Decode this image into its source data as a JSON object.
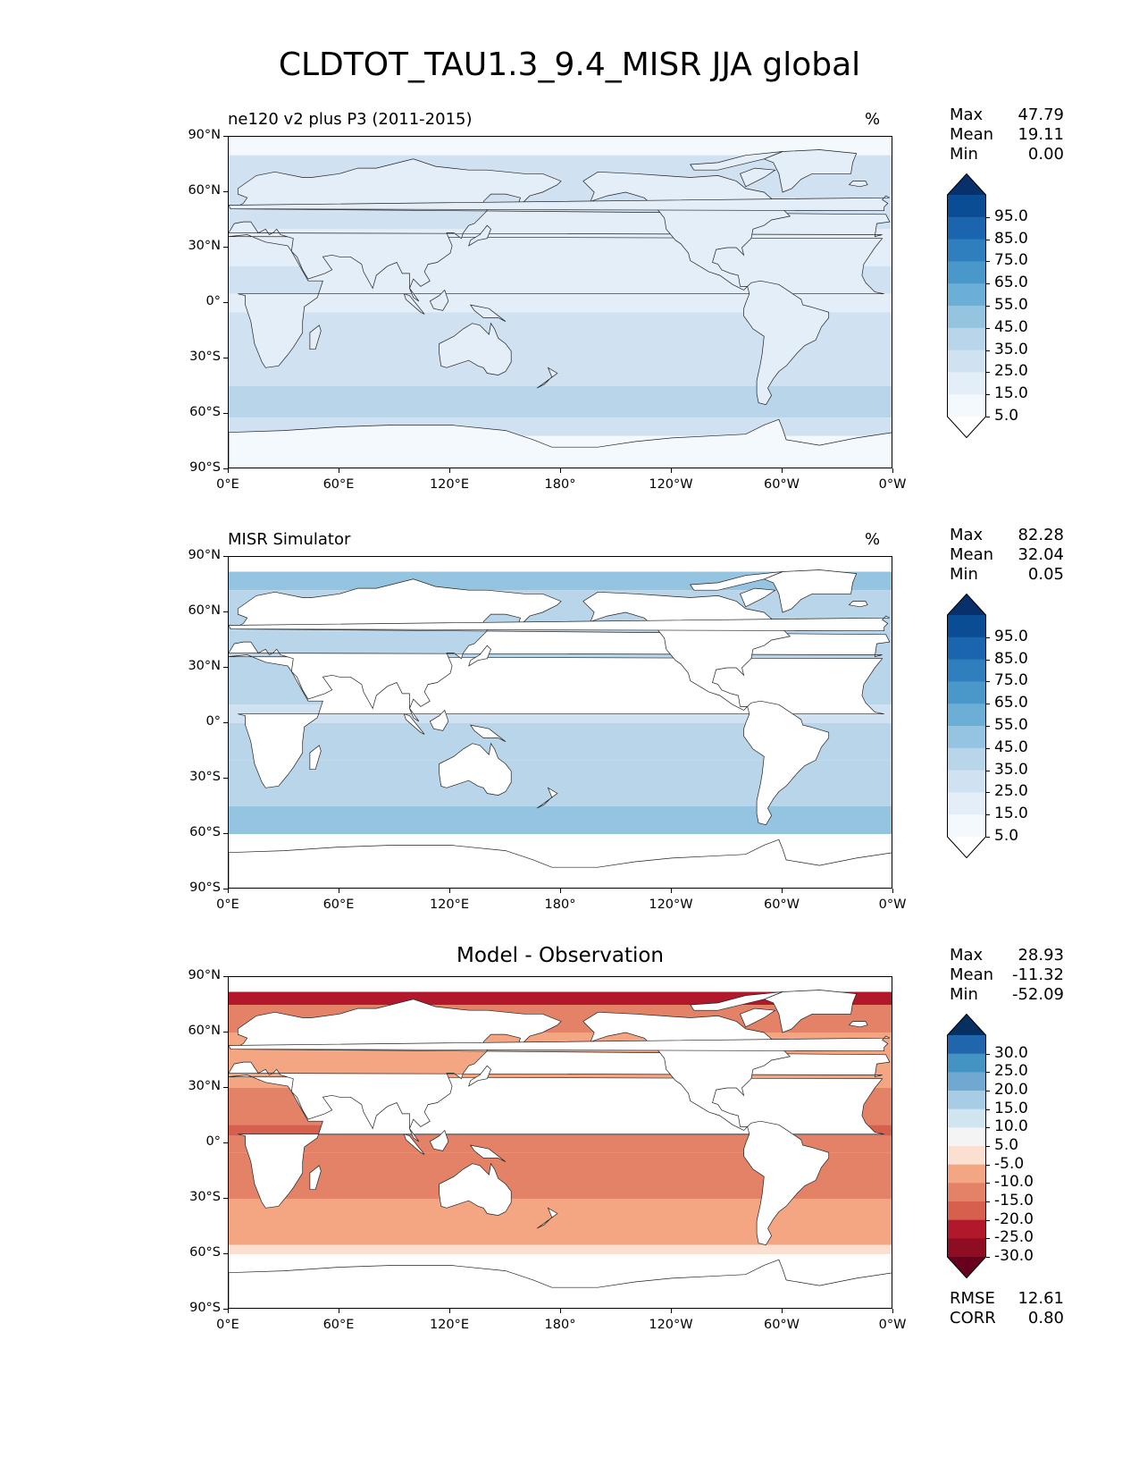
{
  "figure": {
    "title": "CLDTOT_TAU1.3_9.4_MISR JJA global"
  },
  "axes": {
    "lat_ticks": [
      "90°N",
      "60°N",
      "30°N",
      "0°",
      "30°S",
      "60°S",
      "90°S"
    ],
    "lon_ticks": [
      "0°E",
      "60°E",
      "120°E",
      "180°",
      "120°W",
      "60°W",
      "0°W"
    ]
  },
  "panels": [
    {
      "id": "model",
      "title_left": "ne120 v2 plus P3 (2011-2015)",
      "title_center": "",
      "units": "%",
      "stats": [
        {
          "label": "Max",
          "value": "47.79"
        },
        {
          "label": "Mean",
          "value": "19.11"
        },
        {
          "label": "Min",
          "value": "0.00"
        }
      ],
      "colorbar": {
        "labels": [
          "95.0",
          "85.0",
          "75.0",
          "65.0",
          "55.0",
          "45.0",
          "35.0",
          "25.0",
          "15.0",
          "5.0"
        ],
        "colors": [
          "#08306b",
          "#0b4d94",
          "#1a65ad",
          "#2f7fbe",
          "#4a98c9",
          "#6baed6",
          "#94c4df",
          "#b8d5ea",
          "#d0e1f2",
          "#e3eef8",
          "#f4f9fe",
          "#ffffff"
        ]
      },
      "land_masked": false
    },
    {
      "id": "obs",
      "title_left": "MISR Simulator",
      "title_center": "",
      "units": "%",
      "stats": [
        {
          "label": "Max",
          "value": "82.28"
        },
        {
          "label": "Mean",
          "value": "32.04"
        },
        {
          "label": "Min",
          "value": "0.05"
        }
      ],
      "colorbar": {
        "labels": [
          "95.0",
          "85.0",
          "75.0",
          "65.0",
          "55.0",
          "45.0",
          "35.0",
          "25.0",
          "15.0",
          "5.0"
        ],
        "colors": [
          "#08306b",
          "#0b4d94",
          "#1a65ad",
          "#2f7fbe",
          "#4a98c9",
          "#6baed6",
          "#94c4df",
          "#b8d5ea",
          "#d0e1f2",
          "#e3eef8",
          "#f4f9fe",
          "#ffffff"
        ]
      },
      "land_masked": true
    },
    {
      "id": "diff",
      "title_left": "",
      "title_center": "Model - Observation",
      "units": "",
      "stats": [
        {
          "label": "Max",
          "value": "28.93"
        },
        {
          "label": "Mean",
          "value": "-11.32"
        },
        {
          "label": "Min",
          "value": "-52.09"
        }
      ],
      "colorbar": {
        "labels": [
          "30.0",
          "25.0",
          "20.0",
          "15.0",
          "10.0",
          "5.0",
          "-5.0",
          "-10.0",
          "-15.0",
          "-20.0",
          "-25.0",
          "-30.0"
        ],
        "colors": [
          "#053061",
          "#2166ac",
          "#4393c3",
          "#6fa9d1",
          "#a6cde3",
          "#d1e5f0",
          "#f4f4f4",
          "#fbe0d1",
          "#f4a582",
          "#e38266",
          "#d6604d",
          "#b2182b",
          "#8e0d22",
          "#67001f"
        ]
      },
      "rmse": {
        "label": "RMSE",
        "value": "12.61"
      },
      "corr": {
        "label": "CORR",
        "value": "0.80"
      },
      "land_masked": true
    }
  ]
}
